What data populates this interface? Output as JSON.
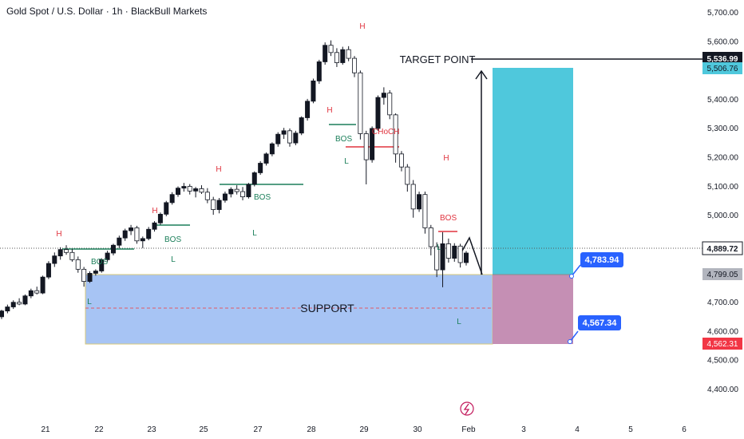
{
  "header": {
    "title": "Gold Spot / U.S. Dollar · 1h · BlackBull Markets"
  },
  "chart_data": {
    "type": "candlestick",
    "instrument": "Gold Spot / U.S. Dollar",
    "timeframe": "1h",
    "broker": "BlackBull Markets",
    "ylim": [
      4360,
      5730
    ],
    "y_ticks": [
      "5,700.00",
      "5,600.00",
      "5,500.00",
      "5,400.00",
      "5,300.00",
      "5,200.00",
      "5,100.00",
      "5,000.00",
      "4,900.00",
      "4,800.00",
      "4,700.00",
      "4,600.00",
      "4,500.00",
      "4,400.00"
    ],
    "x_ticks": [
      "21",
      "22",
      "23",
      "25",
      "27",
      "28",
      "29",
      "30",
      "Feb",
      "3",
      "4",
      "5",
      "6"
    ],
    "price_labels": {
      "target": "5,536.99",
      "tp_zone_top": "5,506.76",
      "current": "4,889.72",
      "entry": "4,799.05",
      "stop": "4,562.31"
    },
    "callouts": {
      "upper": "4,783.94",
      "lower": "4,567.34"
    },
    "annotations": {
      "target_text": "TARGET POINT",
      "support_text": "SUPPORT",
      "choch": "CHoCH",
      "bos": "BOS",
      "high": "H",
      "low": "L"
    },
    "candles": [
      [
        4648,
        4672,
        4640,
        4668
      ],
      [
        4668,
        4690,
        4660,
        4682
      ],
      [
        4682,
        4705,
        4675,
        4698
      ],
      [
        4698,
        4712,
        4688,
        4692
      ],
      [
        4692,
        4725,
        4688,
        4720
      ],
      [
        4720,
        4745,
        4712,
        4738
      ],
      [
        4738,
        4752,
        4725,
        4730
      ],
      [
        4730,
        4790,
        4726,
        4785
      ],
      [
        4785,
        4840,
        4778,
        4832
      ],
      [
        4832,
        4870,
        4820,
        4858
      ],
      [
        4858,
        4888,
        4845,
        4880
      ],
      [
        4880,
        4895,
        4862,
        4870
      ],
      [
        4870,
        4882,
        4838,
        4845
      ],
      [
        4845,
        4856,
        4800,
        4812
      ],
      [
        4812,
        4820,
        4752,
        4770
      ],
      [
        4770,
        4805,
        4765,
        4798
      ],
      [
        4798,
        4812,
        4790,
        4806
      ],
      [
        4806,
        4850,
        4800,
        4845
      ],
      [
        4845,
        4876,
        4838,
        4868
      ],
      [
        4868,
        4900,
        4860,
        4895
      ],
      [
        4895,
        4928,
        4885,
        4920
      ],
      [
        4920,
        4952,
        4910,
        4945
      ],
      [
        4945,
        4965,
        4930,
        4955
      ],
      [
        4955,
        4962,
        4900,
        4910
      ],
      [
        4910,
        4925,
        4885,
        4918
      ],
      [
        4918,
        4958,
        4912,
        4950
      ],
      [
        4950,
        4978,
        4942,
        4972
      ],
      [
        4972,
        5008,
        4965,
        5002
      ],
      [
        5002,
        5048,
        4995,
        5042
      ],
      [
        5042,
        5078,
        5035,
        5070
      ],
      [
        5070,
        5098,
        5062,
        5092
      ],
      [
        5092,
        5110,
        5080,
        5098
      ],
      [
        5098,
        5106,
        5070,
        5082
      ],
      [
        5082,
        5096,
        5060,
        5090
      ],
      [
        5090,
        5102,
        5072,
        5078
      ],
      [
        5078,
        5092,
        5040,
        5052
      ],
      [
        5052,
        5062,
        5000,
        5018
      ],
      [
        5018,
        5058,
        5005,
        5050
      ],
      [
        5050,
        5080,
        5042,
        5072
      ],
      [
        5072,
        5095,
        5060,
        5088
      ],
      [
        5088,
        5102,
        5070,
        5080
      ],
      [
        5080,
        5096,
        5050,
        5062
      ],
      [
        5062,
        5110,
        5056,
        5105
      ],
      [
        5105,
        5150,
        5098,
        5145
      ],
      [
        5145,
        5185,
        5138,
        5178
      ],
      [
        5178,
        5215,
        5170,
        5210
      ],
      [
        5210,
        5250,
        5202,
        5245
      ],
      [
        5245,
        5285,
        5235,
        5278
      ],
      [
        5278,
        5300,
        5262,
        5290
      ],
      [
        5290,
        5298,
        5235,
        5248
      ],
      [
        5248,
        5290,
        5240,
        5282
      ],
      [
        5282,
        5340,
        5275,
        5335
      ],
      [
        5335,
        5400,
        5325,
        5392
      ],
      [
        5392,
        5470,
        5385,
        5462
      ],
      [
        5462,
        5535,
        5452,
        5528
      ],
      [
        5528,
        5595,
        5518,
        5585
      ],
      [
        5585,
        5602,
        5548,
        5560
      ],
      [
        5560,
        5575,
        5510,
        5525
      ],
      [
        5525,
        5580,
        5518,
        5570
      ],
      [
        5570,
        5582,
        5530,
        5540
      ],
      [
        5540,
        5548,
        5475,
        5490
      ],
      [
        5490,
        5498,
        5260,
        5280
      ],
      [
        5280,
        5290,
        5105,
        5190
      ],
      [
        5190,
        5305,
        5180,
        5298
      ],
      [
        5298,
        5412,
        5290,
        5405
      ],
      [
        5405,
        5440,
        5380,
        5420
      ],
      [
        5420,
        5430,
        5330,
        5345
      ],
      [
        5345,
        5350,
        5180,
        5210
      ],
      [
        5210,
        5220,
        5150,
        5165
      ],
      [
        5165,
        5175,
        5080,
        5105
      ],
      [
        5105,
        5120,
        4990,
        5020
      ],
      [
        5020,
        5080,
        5010,
        5070
      ],
      [
        5070,
        5080,
        4935,
        4955
      ],
      [
        4955,
        4965,
        4860,
        4890
      ],
      [
        4890,
        4905,
        4785,
        4810
      ],
      [
        4810,
        4940,
        4750,
        4900
      ],
      [
        4900,
        4918,
        4835,
        4850
      ],
      [
        4850,
        4902,
        4838,
        4892
      ],
      [
        4892,
        4900,
        4818,
        4835
      ],
      [
        4835,
        4875,
        4825,
        4868
      ]
    ]
  }
}
